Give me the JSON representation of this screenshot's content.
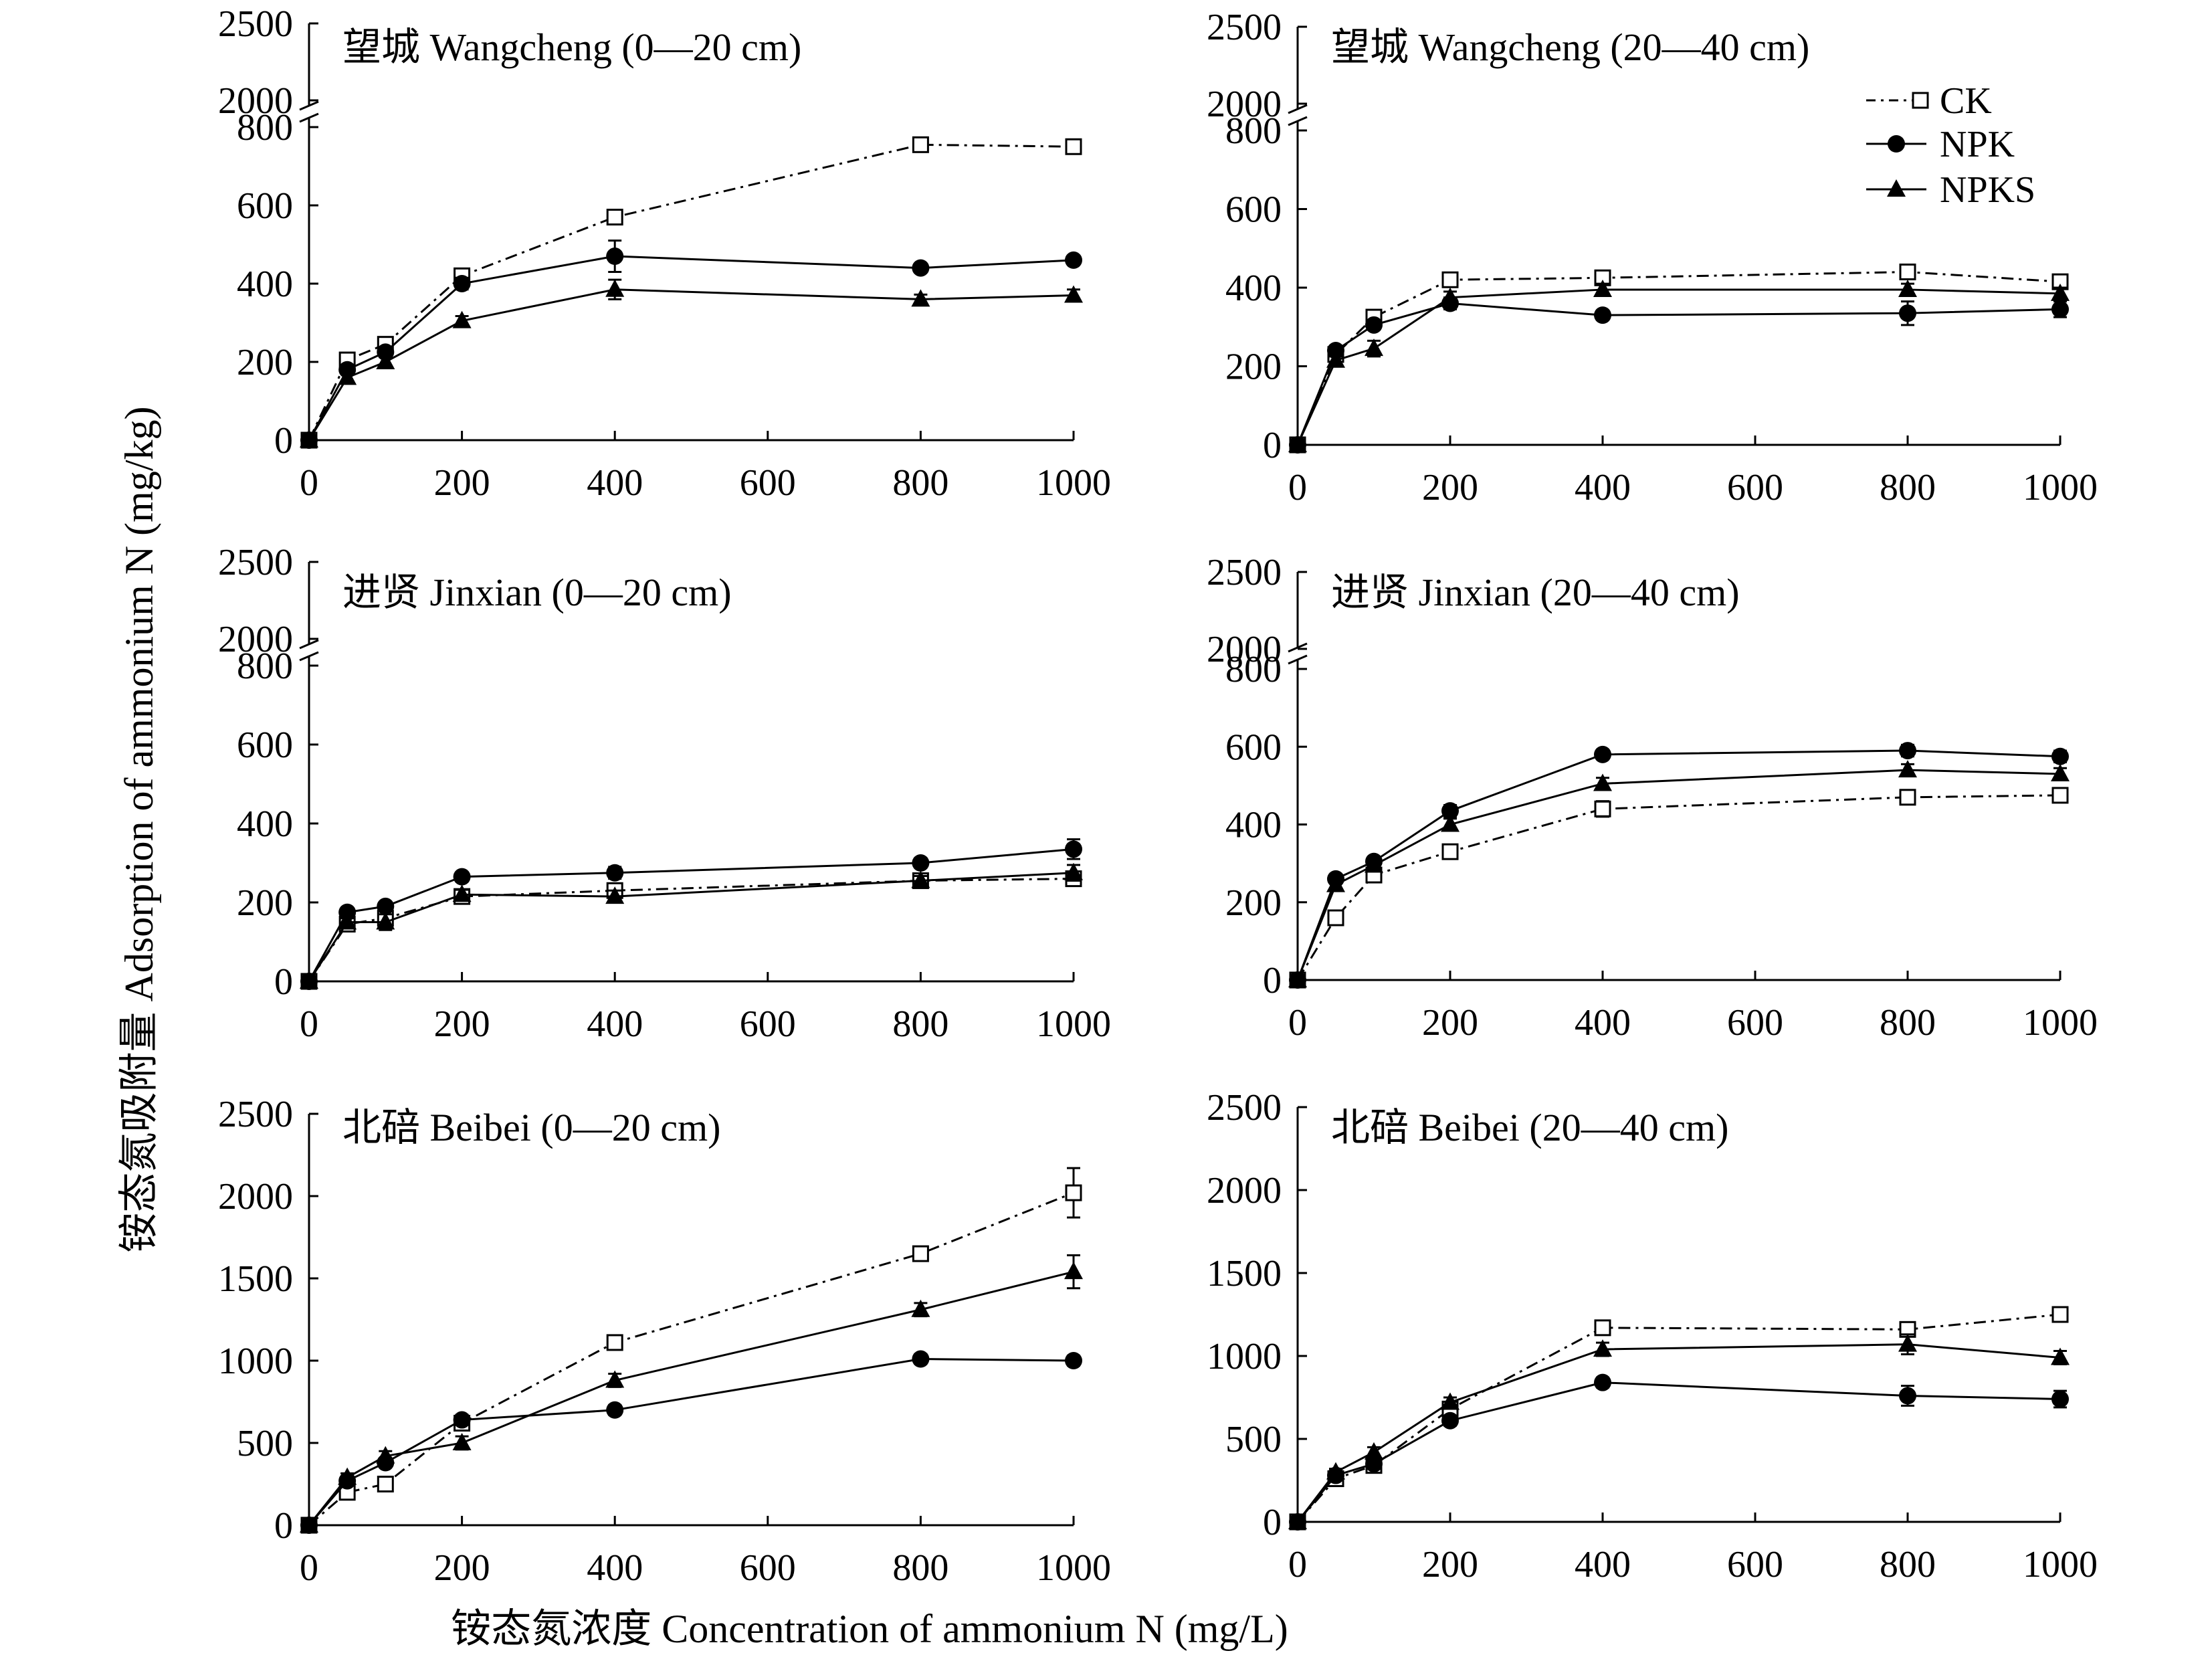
{
  "figure": {
    "x_axis_label": "铵态氮浓度 Concentration of ammonium N (mg/L)",
    "y_axis_label": "铵态氮吸附量 Adsorption of ammonium N (mg/kg)"
  },
  "legend": {
    "entries": [
      {
        "name": "CK",
        "marker": "open-square",
        "line": "dash-dot"
      },
      {
        "name": "NPK",
        "marker": "filled-circle",
        "line": "solid"
      },
      {
        "name": "NPKS",
        "marker": "filled-triangle",
        "line": "solid"
      }
    ]
  },
  "colors": {
    "ink": "#000000",
    "background": "#ffffff"
  },
  "chart_data": [
    {
      "type": "line",
      "title": "望城 Wangcheng (0—20 cm)",
      "x": [
        0,
        50,
        100,
        200,
        400,
        800,
        1000
      ],
      "xticks": [
        "0",
        "200",
        "400",
        "600",
        "800",
        "1000"
      ],
      "xlim": [
        0,
        1000
      ],
      "ylim": [
        0,
        800
      ],
      "yticks": [
        "0",
        "200",
        "400",
        "600",
        "800"
      ],
      "ybreak_ticks": [
        "2000",
        "2500"
      ],
      "broken_axis": true,
      "series": [
        {
          "name": "CK",
          "values": [
            0,
            205,
            245,
            420,
            570,
            755,
            750
          ],
          "errors": [
            0,
            12,
            12,
            15,
            15,
            10,
            10
          ]
        },
        {
          "name": "NPK",
          "values": [
            0,
            180,
            225,
            400,
            470,
            440,
            460
          ],
          "errors": [
            0,
            12,
            12,
            15,
            40,
            10,
            10
          ]
        },
        {
          "name": "NPKS",
          "values": [
            0,
            160,
            200,
            305,
            385,
            360,
            370
          ],
          "errors": [
            0,
            12,
            12,
            12,
            25,
            12,
            15
          ]
        }
      ]
    },
    {
      "type": "line",
      "title": "望城 Wangcheng (20—40 cm)",
      "x": [
        0,
        50,
        100,
        200,
        400,
        800,
        1000
      ],
      "xticks": [
        "0",
        "200",
        "400",
        "600",
        "800",
        "1000"
      ],
      "xlim": [
        0,
        1000
      ],
      "ylim": [
        0,
        800
      ],
      "yticks": [
        "0",
        "200",
        "400",
        "600",
        "800"
      ],
      "ybreak_ticks": [
        "2000",
        "2500"
      ],
      "broken_axis": true,
      "series": [
        {
          "name": "CK",
          "values": [
            0,
            230,
            325,
            420,
            425,
            440,
            415
          ],
          "errors": [
            0,
            10,
            12,
            12,
            12,
            12,
            12
          ]
        },
        {
          "name": "NPK",
          "values": [
            0,
            240,
            305,
            360,
            330,
            335,
            345
          ],
          "errors": [
            0,
            10,
            12,
            15,
            12,
            30,
            20
          ]
        },
        {
          "name": "NPKS",
          "values": [
            0,
            215,
            245,
            375,
            395,
            395,
            385
          ],
          "errors": [
            0,
            10,
            20,
            15,
            15,
            15,
            15
          ]
        }
      ]
    },
    {
      "type": "line",
      "title": "进贤 Jinxian (0—20 cm)",
      "x": [
        0,
        50,
        100,
        200,
        400,
        800,
        1000
      ],
      "xticks": [
        "0",
        "200",
        "400",
        "600",
        "800",
        "1000"
      ],
      "xlim": [
        0,
        1000
      ],
      "ylim": [
        0,
        800
      ],
      "yticks": [
        "0",
        "200",
        "400",
        "600",
        "800"
      ],
      "ybreak_ticks": [
        "2000",
        "2500"
      ],
      "broken_axis": true,
      "series": [
        {
          "name": "CK",
          "values": [
            0,
            145,
            160,
            215,
            230,
            255,
            260
          ],
          "errors": [
            0,
            10,
            10,
            12,
            12,
            12,
            12
          ]
        },
        {
          "name": "NPK",
          "values": [
            0,
            175,
            190,
            265,
            275,
            300,
            335
          ],
          "errors": [
            0,
            10,
            10,
            12,
            15,
            12,
            25
          ]
        },
        {
          "name": "NPKS",
          "values": [
            0,
            150,
            150,
            220,
            215,
            255,
            275
          ],
          "errors": [
            0,
            10,
            20,
            12,
            15,
            12,
            20
          ]
        }
      ]
    },
    {
      "type": "line",
      "title": "进贤 Jinxian (20—40 cm)",
      "x": [
        0,
        50,
        100,
        200,
        400,
        800,
        1000
      ],
      "xticks": [
        "0",
        "200",
        "400",
        "600",
        "800",
        "1000"
      ],
      "xlim": [
        0,
        1000
      ],
      "ylim": [
        0,
        800
      ],
      "yticks": [
        "0",
        "200",
        "400",
        "600",
        "800"
      ],
      "ybreak_ticks": [
        "2000",
        "2500"
      ],
      "broken_axis": true,
      "series": [
        {
          "name": "CK",
          "values": [
            0,
            160,
            270,
            330,
            440,
            470,
            475
          ],
          "errors": [
            0,
            10,
            12,
            12,
            20,
            12,
            15
          ]
        },
        {
          "name": "NPK",
          "values": [
            0,
            260,
            305,
            435,
            580,
            590,
            575
          ],
          "errors": [
            0,
            10,
            12,
            15,
            12,
            15,
            15
          ]
        },
        {
          "name": "NPKS",
          "values": [
            0,
            245,
            295,
            400,
            505,
            540,
            530
          ],
          "errors": [
            0,
            10,
            12,
            15,
            15,
            15,
            15
          ]
        }
      ]
    },
    {
      "type": "line",
      "title": "北碚 Beibei (0—20 cm)",
      "x": [
        0,
        50,
        100,
        200,
        400,
        800,
        1000
      ],
      "xticks": [
        "0",
        "200",
        "400",
        "600",
        "800",
        "1000"
      ],
      "xlim": [
        0,
        1000
      ],
      "ylim": [
        0,
        2500
      ],
      "yticks": [
        "0",
        "500",
        "1000",
        "1500",
        "2000",
        "2500"
      ],
      "ybreak_ticks": [],
      "broken_axis": false,
      "series": [
        {
          "name": "CK",
          "values": [
            0,
            200,
            250,
            620,
            1110,
            1650,
            2020
          ],
          "errors": [
            0,
            25,
            25,
            30,
            30,
            30,
            150
          ]
        },
        {
          "name": "NPK",
          "values": [
            0,
            270,
            380,
            640,
            700,
            1010,
            1000
          ],
          "errors": [
            0,
            25,
            25,
            30,
            30,
            30,
            30
          ]
        },
        {
          "name": "NPKS",
          "values": [
            0,
            290,
            420,
            500,
            880,
            1310,
            1540
          ],
          "errors": [
            0,
            25,
            30,
            40,
            40,
            40,
            100
          ]
        }
      ]
    },
    {
      "type": "line",
      "title": "北碚 Beibei (20—40 cm)",
      "x": [
        0,
        50,
        100,
        200,
        400,
        800,
        1000
      ],
      "xticks": [
        "0",
        "200",
        "400",
        "600",
        "800",
        "1000"
      ],
      "xlim": [
        0,
        1000
      ],
      "ylim": [
        0,
        2500
      ],
      "yticks": [
        "0",
        "500",
        "1000",
        "1500",
        "2000",
        "2500"
      ],
      "ybreak_ticks": [],
      "broken_axis": false,
      "series": [
        {
          "name": "CK",
          "values": [
            0,
            260,
            340,
            680,
            1170,
            1160,
            1250
          ],
          "errors": [
            0,
            20,
            25,
            30,
            30,
            30,
            30
          ]
        },
        {
          "name": "NPK",
          "values": [
            0,
            280,
            350,
            610,
            840,
            760,
            740
          ],
          "errors": [
            0,
            20,
            25,
            30,
            30,
            60,
            50
          ]
        },
        {
          "name": "NPKS",
          "values": [
            0,
            300,
            420,
            720,
            1040,
            1070,
            990
          ],
          "errors": [
            0,
            20,
            30,
            30,
            40,
            60,
            40
          ]
        }
      ]
    }
  ]
}
